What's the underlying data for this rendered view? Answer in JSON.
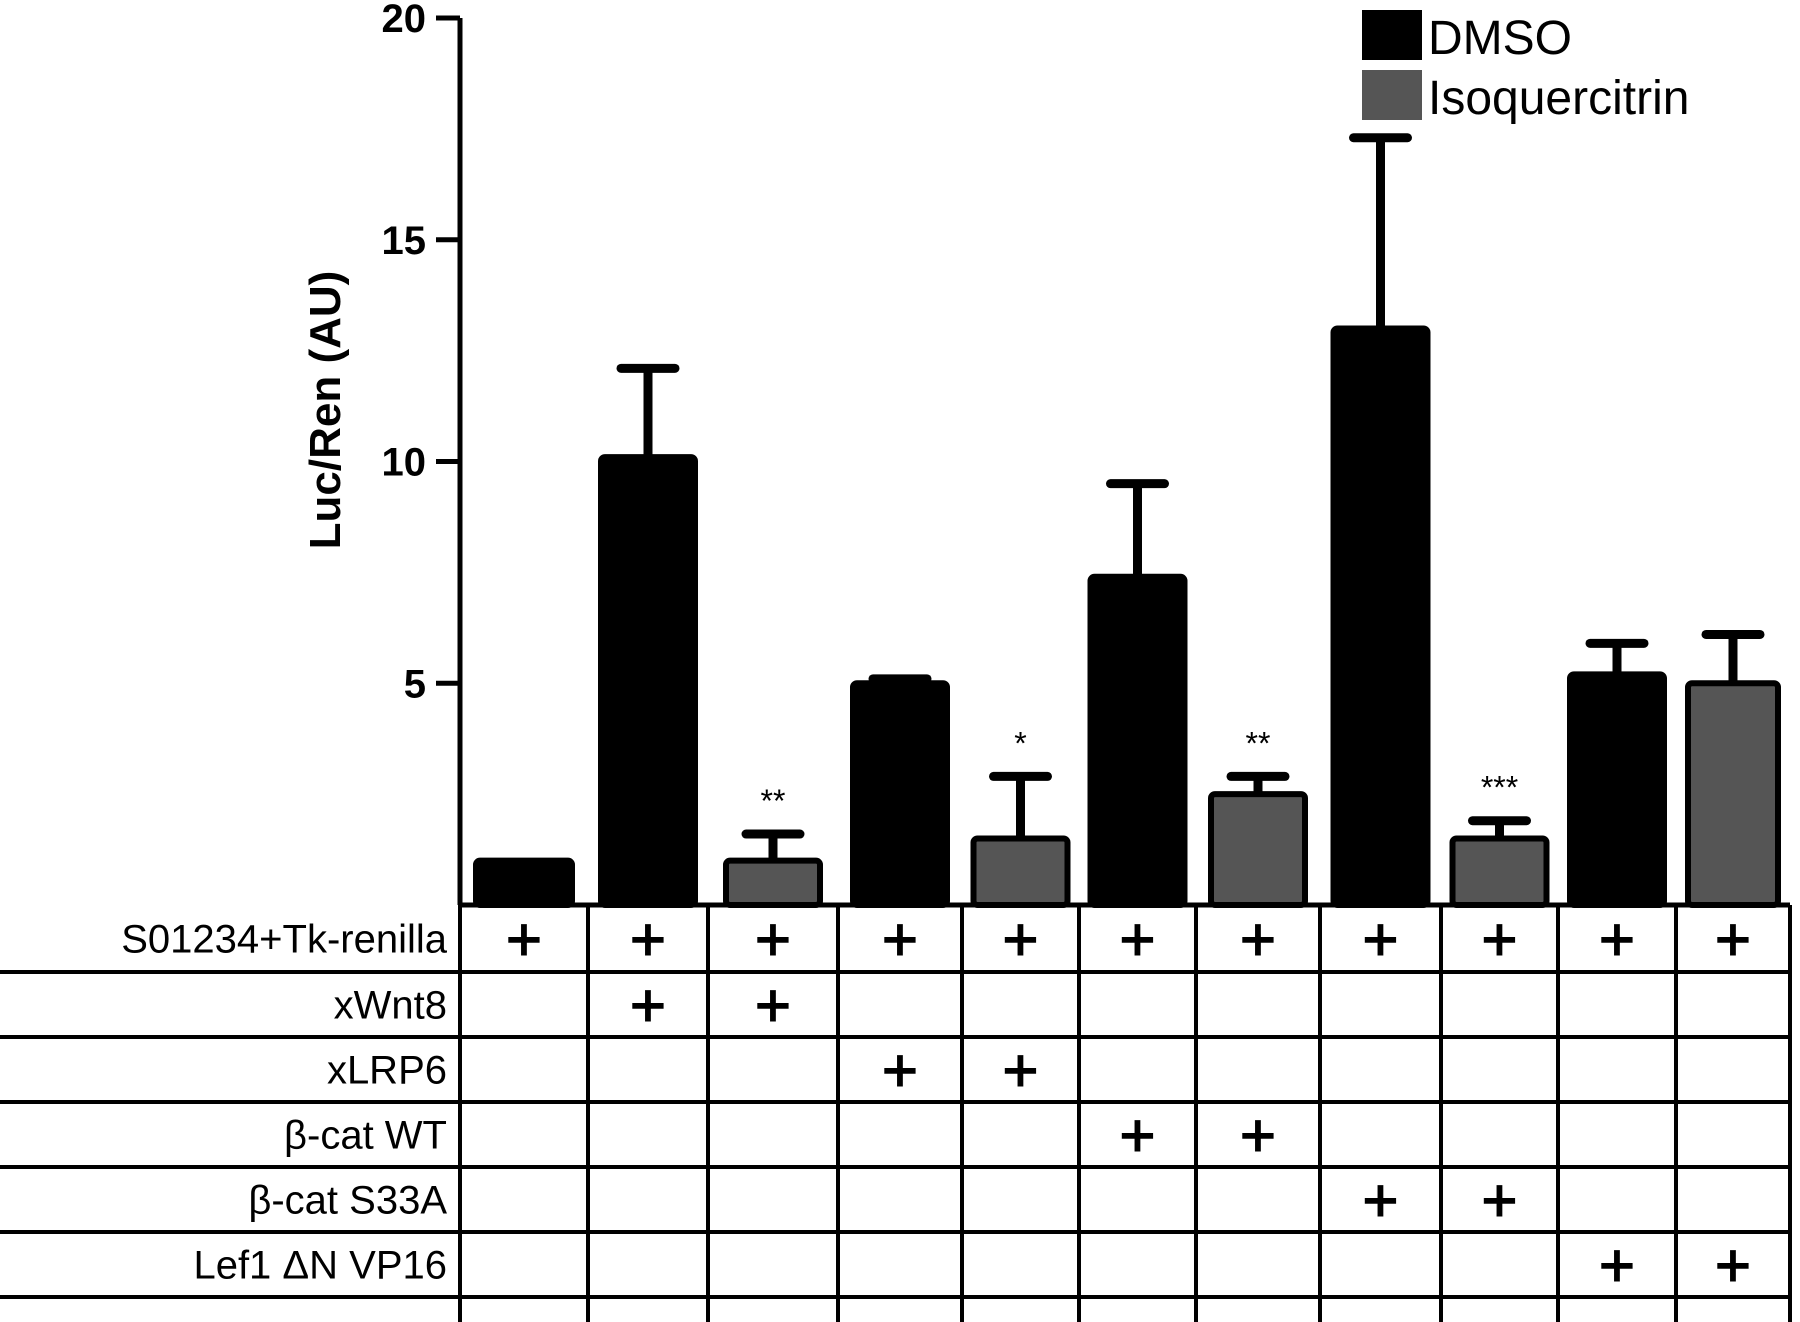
{
  "chart_data": {
    "type": "bar",
    "ylabel": "Luc/Ren (AU)",
    "xlabel": "",
    "title": "",
    "ylim": [
      0,
      20
    ],
    "yticks": [
      5,
      10,
      15,
      20
    ],
    "legend": {
      "placement": "top-right",
      "entries": [
        {
          "label": "DMSO",
          "color": "#000000"
        },
        {
          "label": "Isoquercitrin",
          "color": "#555555"
        }
      ]
    },
    "bars": [
      {
        "series": "DMSO",
        "value": 1.0,
        "error": 0.0,
        "sig": ""
      },
      {
        "series": "DMSO",
        "value": 10.1,
        "error": 2.0,
        "sig": ""
      },
      {
        "series": "Isoquercitrin",
        "value": 1.0,
        "error": 0.6,
        "sig": "**"
      },
      {
        "series": "DMSO",
        "value": 5.0,
        "error": 0.1,
        "sig": ""
      },
      {
        "series": "Isoquercitrin",
        "value": 1.5,
        "error": 1.4,
        "sig": "*"
      },
      {
        "series": "DMSO",
        "value": 7.4,
        "error": 2.1,
        "sig": ""
      },
      {
        "series": "Isoquercitrin",
        "value": 2.5,
        "error": 0.4,
        "sig": "**"
      },
      {
        "series": "DMSO",
        "value": 13.0,
        "error": 4.3,
        "sig": ""
      },
      {
        "series": "Isoquercitrin",
        "value": 1.5,
        "error": 0.4,
        "sig": "***"
      },
      {
        "series": "DMSO",
        "value": 5.2,
        "error": 0.7,
        "sig": ""
      },
      {
        "series": "Isoquercitrin",
        "value": 5.0,
        "error": 1.1,
        "sig": ""
      }
    ],
    "conditions": [
      {
        "label": "S01234+Tk-renilla",
        "present": [
          1,
          1,
          1,
          1,
          1,
          1,
          1,
          1,
          1,
          1,
          1
        ]
      },
      {
        "label": "xWnt8",
        "present": [
          0,
          1,
          1,
          0,
          0,
          0,
          0,
          0,
          0,
          0,
          0
        ]
      },
      {
        "label": "xLRP6",
        "present": [
          0,
          0,
          0,
          1,
          1,
          0,
          0,
          0,
          0,
          0,
          0
        ]
      },
      {
        "label": "β-cat WT",
        "present": [
          0,
          0,
          0,
          0,
          0,
          1,
          1,
          0,
          0,
          0,
          0
        ]
      },
      {
        "label": "β-cat S33A",
        "present": [
          0,
          0,
          0,
          0,
          0,
          0,
          0,
          1,
          1,
          0,
          0
        ]
      },
      {
        "label": "Lef1 ΔN VP16",
        "present": [
          0,
          0,
          0,
          0,
          0,
          0,
          0,
          0,
          0,
          1,
          1
        ]
      }
    ],
    "present_symbol": "+"
  }
}
